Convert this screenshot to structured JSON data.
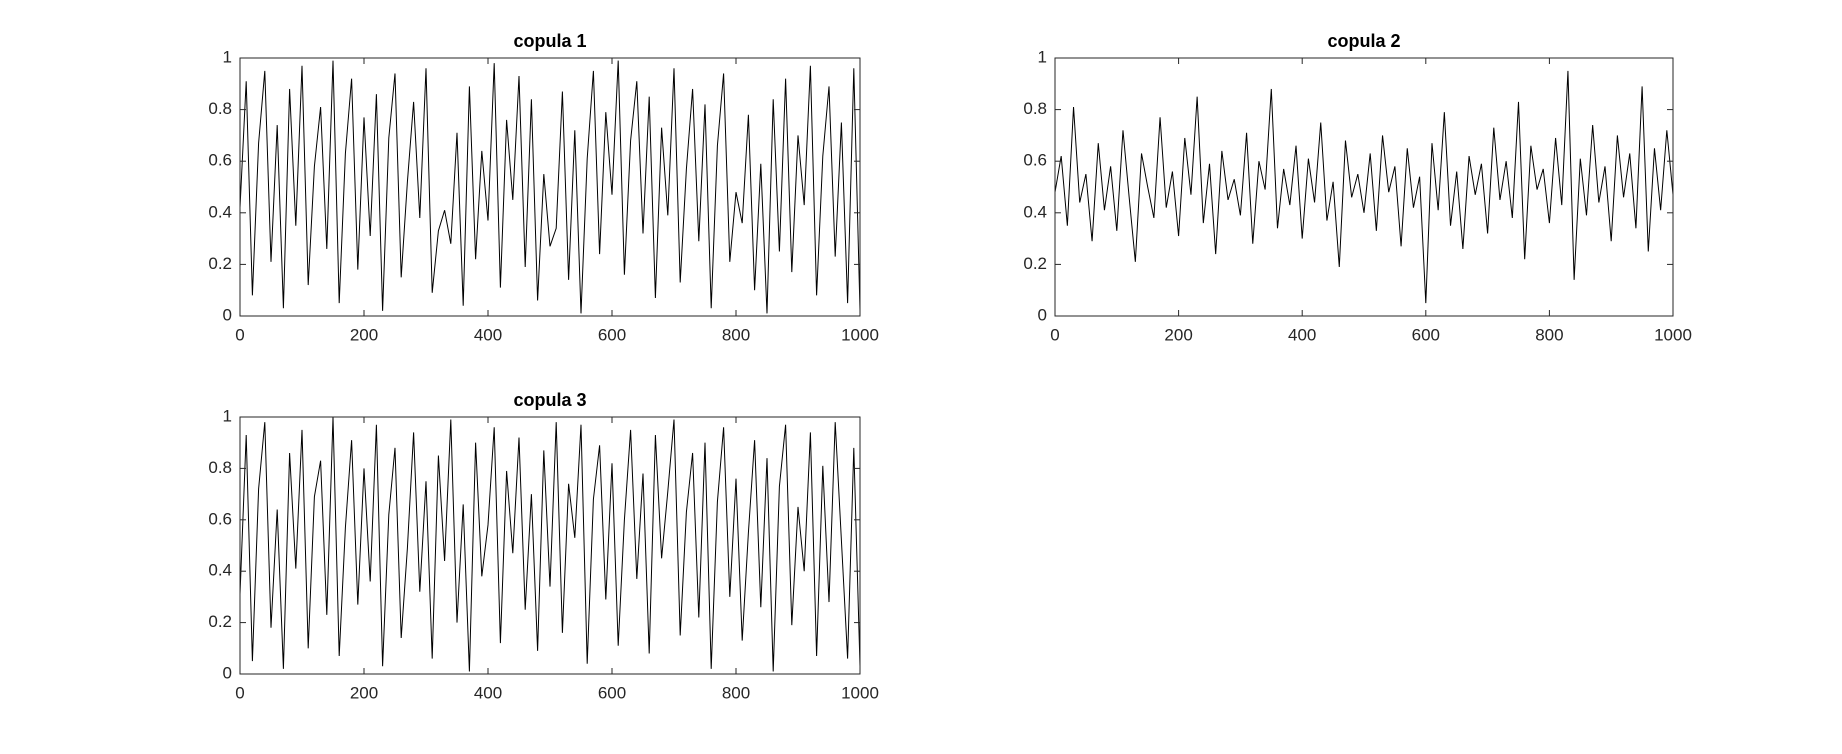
{
  "chart_data": [
    {
      "type": "line",
      "title": "copula 1",
      "color": "#000000",
      "x": [
        0,
        10,
        20,
        30,
        40,
        50,
        60,
        70,
        80,
        90,
        100,
        110,
        120,
        130,
        140,
        150,
        160,
        170,
        180,
        190,
        200,
        210,
        220,
        230,
        240,
        250,
        260,
        270,
        280,
        290,
        300,
        310,
        320,
        330,
        340,
        350,
        360,
        370,
        380,
        390,
        400,
        410,
        420,
        430,
        440,
        450,
        460,
        470,
        480,
        490,
        500,
        510,
        520,
        530,
        540,
        550,
        560,
        570,
        580,
        590,
        600,
        610,
        620,
        630,
        640,
        650,
        660,
        670,
        680,
        690,
        700,
        710,
        720,
        730,
        740,
        750,
        760,
        770,
        780,
        790,
        800,
        810,
        820,
        830,
        840,
        850,
        860,
        870,
        880,
        890,
        900,
        910,
        920,
        930,
        940,
        950,
        960,
        970,
        980,
        990,
        1000
      ],
      "values": [
        0.42,
        0.91,
        0.08,
        0.67,
        0.95,
        0.21,
        0.74,
        0.03,
        0.88,
        0.35,
        0.97,
        0.12,
        0.58,
        0.81,
        0.26,
        0.99,
        0.05,
        0.63,
        0.92,
        0.18,
        0.77,
        0.31,
        0.86,
        0.02,
        0.69,
        0.94,
        0.15,
        0.52,
        0.83,
        0.38,
        0.96,
        0.09,
        0.33,
        0.41,
        0.28,
        0.71,
        0.04,
        0.89,
        0.22,
        0.64,
        0.37,
        0.98,
        0.11,
        0.76,
        0.45,
        0.93,
        0.19,
        0.84,
        0.06,
        0.55,
        0.27,
        0.34,
        0.87,
        0.14,
        0.72,
        0.01,
        0.61,
        0.95,
        0.24,
        0.79,
        0.47,
        0.99,
        0.16,
        0.68,
        0.91,
        0.32,
        0.85,
        0.07,
        0.73,
        0.39,
        0.96,
        0.13,
        0.57,
        0.88,
        0.29,
        0.82,
        0.03,
        0.66,
        0.94,
        0.21,
        0.48,
        0.36,
        0.78,
        0.1,
        0.59,
        0.01,
        0.84,
        0.25,
        0.92,
        0.17,
        0.7,
        0.43,
        0.97,
        0.08,
        0.62,
        0.89,
        0.23,
        0.75,
        0.05,
        0.96,
        0.02
      ],
      "xlim": [
        0,
        1000
      ],
      "xticks": [
        0,
        200,
        400,
        600,
        800,
        1000
      ],
      "ylim": [
        0,
        1
      ],
      "yticks": [
        0,
        0.2,
        0.4,
        0.6,
        0.8,
        1
      ]
    },
    {
      "type": "line",
      "title": "copula 2",
      "color": "#000000",
      "x": [
        0,
        10,
        20,
        30,
        40,
        50,
        60,
        70,
        80,
        90,
        100,
        110,
        120,
        130,
        140,
        150,
        160,
        170,
        180,
        190,
        200,
        210,
        220,
        230,
        240,
        250,
        260,
        270,
        280,
        290,
        300,
        310,
        320,
        330,
        340,
        350,
        360,
        370,
        380,
        390,
        400,
        410,
        420,
        430,
        440,
        450,
        460,
        470,
        480,
        490,
        500,
        510,
        520,
        530,
        540,
        550,
        560,
        570,
        580,
        590,
        600,
        610,
        620,
        630,
        640,
        650,
        660,
        670,
        680,
        690,
        700,
        710,
        720,
        730,
        740,
        750,
        760,
        770,
        780,
        790,
        800,
        810,
        820,
        830,
        840,
        850,
        860,
        870,
        880,
        890,
        900,
        910,
        920,
        930,
        940,
        950,
        960,
        970,
        980,
        990,
        1000
      ],
      "values": [
        0.48,
        0.62,
        0.35,
        0.81,
        0.44,
        0.55,
        0.29,
        0.67,
        0.41,
        0.58,
        0.33,
        0.72,
        0.46,
        0.21,
        0.63,
        0.5,
        0.38,
        0.77,
        0.42,
        0.56,
        0.31,
        0.69,
        0.47,
        0.85,
        0.36,
        0.59,
        0.24,
        0.64,
        0.45,
        0.53,
        0.39,
        0.71,
        0.28,
        0.6,
        0.49,
        0.88,
        0.34,
        0.57,
        0.43,
        0.66,
        0.3,
        0.61,
        0.44,
        0.75,
        0.37,
        0.52,
        0.19,
        0.68,
        0.46,
        0.55,
        0.4,
        0.63,
        0.33,
        0.7,
        0.48,
        0.58,
        0.27,
        0.65,
        0.42,
        0.54,
        0.05,
        0.67,
        0.41,
        0.79,
        0.35,
        0.56,
        0.26,
        0.62,
        0.47,
        0.59,
        0.32,
        0.73,
        0.45,
        0.6,
        0.38,
        0.83,
        0.22,
        0.66,
        0.49,
        0.57,
        0.36,
        0.69,
        0.43,
        0.95,
        0.14,
        0.61,
        0.39,
        0.74,
        0.44,
        0.58,
        0.29,
        0.7,
        0.46,
        0.63,
        0.34,
        0.89,
        0.25,
        0.65,
        0.41,
        0.72,
        0.47
      ],
      "xlim": [
        0,
        1000
      ],
      "xticks": [
        0,
        200,
        400,
        600,
        800,
        1000
      ],
      "ylim": [
        0,
        1
      ],
      "yticks": [
        0,
        0.2,
        0.4,
        0.6,
        0.8,
        1
      ]
    },
    {
      "type": "line",
      "title": "copula 3",
      "color": "#000000",
      "x": [
        0,
        10,
        20,
        30,
        40,
        50,
        60,
        70,
        80,
        90,
        100,
        110,
        120,
        130,
        140,
        150,
        160,
        170,
        180,
        190,
        200,
        210,
        220,
        230,
        240,
        250,
        260,
        270,
        280,
        290,
        300,
        310,
        320,
        330,
        340,
        350,
        360,
        370,
        380,
        390,
        400,
        410,
        420,
        430,
        440,
        450,
        460,
        470,
        480,
        490,
        500,
        510,
        520,
        530,
        540,
        550,
        560,
        570,
        580,
        590,
        600,
        610,
        620,
        630,
        640,
        650,
        660,
        670,
        680,
        690,
        700,
        710,
        720,
        730,
        740,
        750,
        760,
        770,
        780,
        790,
        800,
        810,
        820,
        830,
        840,
        850,
        860,
        870,
        880,
        890,
        900,
        910,
        920,
        930,
        940,
        950,
        960,
        970,
        980,
        990,
        1000
      ],
      "values": [
        0.31,
        0.93,
        0.05,
        0.72,
        0.98,
        0.18,
        0.64,
        0.02,
        0.86,
        0.41,
        0.95,
        0.1,
        0.69,
        0.83,
        0.23,
        1,
        0.07,
        0.57,
        0.91,
        0.27,
        0.8,
        0.36,
        0.97,
        0.03,
        0.62,
        0.88,
        0.14,
        0.49,
        0.94,
        0.32,
        0.75,
        0.06,
        0.85,
        0.44,
        0.99,
        0.2,
        0.66,
        0.01,
        0.9,
        0.38,
        0.58,
        0.96,
        0.12,
        0.79,
        0.47,
        0.92,
        0.25,
        0.7,
        0.09,
        0.87,
        0.34,
        0.98,
        0.16,
        0.74,
        0.53,
        0.97,
        0.04,
        0.68,
        0.89,
        0.29,
        0.82,
        0.11,
        0.6,
        0.95,
        0.37,
        0.78,
        0.08,
        0.93,
        0.45,
        0.71,
        0.99,
        0.15,
        0.63,
        0.86,
        0.22,
        0.9,
        0.02,
        0.67,
        0.96,
        0.3,
        0.76,
        0.13,
        0.55,
        0.91,
        0.26,
        0.84,
        0.01,
        0.73,
        0.97,
        0.19,
        0.65,
        0.4,
        0.94,
        0.07,
        0.81,
        0.28,
        0.98,
        0.52,
        0.06,
        0.88,
        0.03
      ],
      "xlim": [
        0,
        1000
      ],
      "xticks": [
        0,
        200,
        400,
        600,
        800,
        1000
      ],
      "ylim": [
        0,
        1
      ],
      "yticks": [
        0,
        0.2,
        0.4,
        0.6,
        0.8,
        1
      ]
    }
  ]
}
